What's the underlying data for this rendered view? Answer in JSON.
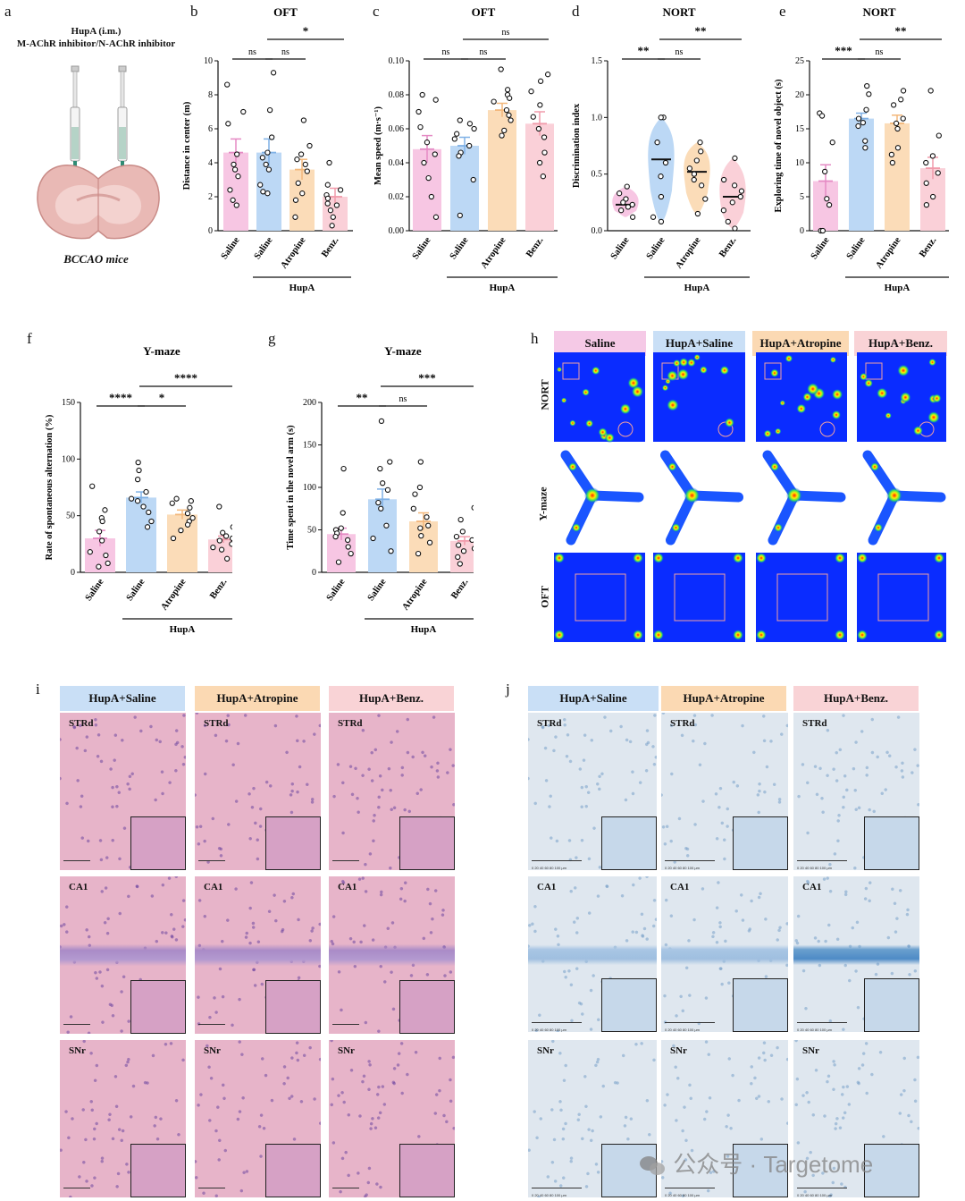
{
  "panel_letters": {
    "a": "a",
    "b": "b",
    "c": "c",
    "d": "d",
    "e": "e",
    "f": "f",
    "g": "g",
    "h": "h",
    "i": "i",
    "j": "j"
  },
  "panel_a": {
    "line1": "HupA (i.m.)",
    "line2": "M-AChR inhibitor/N-AChR inhibitor",
    "caption": "BCCAO mice"
  },
  "groups": [
    "Saline",
    "Saline",
    "Atropine",
    "Benz."
  ],
  "hupa_label": "HupA",
  "colors": {
    "pink": "#f7c6e3",
    "blue": "#bcd8f5",
    "orange": "#fbdcb8",
    "rose": "#fad0d8",
    "pink_edge": "#e58ac4",
    "blue_edge": "#7fb1e6",
    "orange_edge": "#f3b77a",
    "rose_edge": "#f19aaa"
  },
  "chart_data": [
    {
      "id": "b",
      "type": "bar",
      "title": "OFT",
      "ylabel": "Distance in center (m)",
      "categories": [
        "Saline",
        "Saline",
        "Atropine",
        "Benz."
      ],
      "values": [
        4.6,
        4.6,
        3.6,
        2.0
      ],
      "sem": [
        0.8,
        0.8,
        0.6,
        0.5
      ],
      "ylim": [
        0,
        10
      ],
      "yticks": [
        0,
        2,
        4,
        6,
        8,
        10
      ],
      "points": [
        [
          8.6,
          7.0,
          6.3,
          4.5,
          3.9,
          3.6,
          3.2,
          2.4,
          1.8,
          1.5
        ],
        [
          9.3,
          7.1,
          5.5,
          4.6,
          4.3,
          3.9,
          3.6,
          2.7,
          2.3,
          2.2
        ],
        [
          6.5,
          5.0,
          4.5,
          4.2,
          3.9,
          3.5,
          2.8,
          2.2,
          1.8,
          0.8
        ],
        [
          4.0,
          2.7,
          2.4,
          2.1,
          1.9,
          1.6,
          1.5,
          1.2,
          0.8,
          0.3
        ]
      ],
      "sig": [
        {
          "from": 0,
          "to": 1,
          "label": "ns",
          "level": 0
        },
        {
          "from": 1,
          "to": 2,
          "label": "ns",
          "level": 0
        },
        {
          "from": 1,
          "to": 3,
          "label": "*",
          "level": 1
        }
      ]
    },
    {
      "id": "c",
      "type": "bar",
      "title": "OFT",
      "ylabel": "Mean speed (m·s⁻¹)",
      "categories": [
        "Saline",
        "Saline",
        "Atropine",
        "Benz."
      ],
      "values": [
        0.048,
        0.05,
        0.071,
        0.063
      ],
      "sem": [
        0.008,
        0.005,
        0.004,
        0.007
      ],
      "ylim": [
        0,
        0.1
      ],
      "yticks": [
        0.0,
        0.02,
        0.04,
        0.06,
        0.08,
        0.1
      ],
      "points": [
        [
          0.08,
          0.077,
          0.07,
          0.061,
          0.052,
          0.045,
          0.04,
          0.031,
          0.02,
          0.008
        ],
        [
          0.065,
          0.063,
          0.06,
          0.057,
          0.054,
          0.05,
          0.046,
          0.044,
          0.03,
          0.009
        ],
        [
          0.095,
          0.083,
          0.08,
          0.078,
          0.076,
          0.071,
          0.068,
          0.065,
          0.059,
          0.056
        ],
        [
          0.092,
          0.088,
          0.082,
          0.074,
          0.067,
          0.06,
          0.055,
          0.046,
          0.04,
          0.032
        ]
      ],
      "sig": [
        {
          "from": 0,
          "to": 1,
          "label": "ns",
          "level": 0
        },
        {
          "from": 1,
          "to": 2,
          "label": "ns",
          "level": 0
        },
        {
          "from": 1,
          "to": 3,
          "label": "ns",
          "level": 1
        }
      ]
    },
    {
      "id": "d",
      "type": "violin",
      "title": "NORT",
      "ylabel": "Discrimination index",
      "categories": [
        "Saline",
        "Saline",
        "Atropine",
        "Benz."
      ],
      "values": [
        0.23,
        0.63,
        0.52,
        0.3
      ],
      "ylim": [
        0,
        1.5
      ],
      "yticks": [
        0.0,
        0.5,
        1.0,
        1.5
      ],
      "points": [
        [
          0.39,
          0.33,
          0.28,
          0.25,
          0.23,
          0.21,
          0.18,
          0.12
        ],
        [
          1.0,
          1.0,
          0.78,
          0.6,
          0.48,
          0.3,
          0.12,
          0.08
        ],
        [
          0.78,
          0.7,
          0.62,
          0.55,
          0.5,
          0.45,
          0.4,
          0.28,
          0.15
        ],
        [
          0.64,
          0.45,
          0.4,
          0.35,
          0.3,
          0.25,
          0.18,
          0.08,
          0.02
        ]
      ],
      "sig": [
        {
          "from": 0,
          "to": 1,
          "label": "**",
          "level": 0
        },
        {
          "from": 1,
          "to": 2,
          "label": "ns",
          "level": 0
        },
        {
          "from": 1,
          "to": 3,
          "label": "**",
          "level": 1
        }
      ]
    },
    {
      "id": "e",
      "type": "bar",
      "title": "NORT",
      "ylabel": "Exploring time of novel object (s)",
      "categories": [
        "Saline",
        "Saline",
        "Atropine",
        "Benz."
      ],
      "values": [
        7.3,
        16.5,
        15.8,
        9.2
      ],
      "sem": [
        2.4,
        0.8,
        1.2,
        1.6
      ],
      "ylim": [
        0,
        25
      ],
      "yticks": [
        0,
        5,
        10,
        15,
        20,
        25
      ],
      "points": [
        [
          17.3,
          16.9,
          13.0,
          8.7,
          4.7,
          3.8,
          0.0,
          0.0
        ],
        [
          21.3,
          20.1,
          17.8,
          16.5,
          15.9,
          15.4,
          13.2,
          12.2
        ],
        [
          20.6,
          19.3,
          18.5,
          16.5,
          15.8,
          15.0,
          12.2,
          11.2,
          10.0
        ],
        [
          20.6,
          14.0,
          11.0,
          10.0,
          8.5,
          7.0,
          5.0,
          3.8
        ]
      ],
      "sig": [
        {
          "from": 0,
          "to": 1,
          "label": "***",
          "level": 0
        },
        {
          "from": 1,
          "to": 2,
          "label": "ns",
          "level": 0
        },
        {
          "from": 1,
          "to": 3,
          "label": "**",
          "level": 1
        }
      ]
    },
    {
      "id": "f",
      "type": "bar",
      "title": "Y-maze",
      "ylabel": "Rate of spontaneous alternation (%)",
      "categories": [
        "Saline",
        "Saline",
        "Atropine",
        "Benz."
      ],
      "values": [
        30,
        66,
        51,
        29
      ],
      "sem": [
        7,
        5,
        4,
        3
      ],
      "ylim": [
        0,
        150
      ],
      "yticks": [
        0,
        50,
        100,
        150
      ],
      "points": [
        [
          76,
          55,
          48,
          45,
          36,
          28,
          18,
          15,
          8,
          5
        ],
        [
          97,
          90,
          82,
          71,
          65,
          63,
          58,
          53,
          45,
          40
        ],
        [
          65,
          63,
          61,
          57,
          52,
          48,
          45,
          42,
          37,
          30
        ],
        [
          58,
          40,
          35,
          32,
          30,
          28,
          25,
          22,
          20,
          12
        ]
      ],
      "sig": [
        {
          "from": 0,
          "to": 1,
          "label": "****",
          "level": 0
        },
        {
          "from": 1,
          "to": 2,
          "label": "*",
          "level": 0
        },
        {
          "from": 1,
          "to": 3,
          "label": "****",
          "level": 1
        }
      ]
    },
    {
      "id": "g",
      "type": "bar",
      "title": "Y-maze",
      "ylabel": "Time spent in the novel arm (s)",
      "categories": [
        "Saline",
        "Saline",
        "Atropine",
        "Benz."
      ],
      "values": [
        45,
        86,
        60,
        37
      ],
      "sem": [
        7,
        12,
        10,
        5
      ],
      "ylim": [
        0,
        200
      ],
      "yticks": [
        0,
        50,
        100,
        150,
        200
      ],
      "points": [
        [
          122,
          70,
          52,
          50,
          46,
          42,
          38,
          30,
          22,
          12
        ],
        [
          178,
          130,
          122,
          105,
          97,
          82,
          75,
          55,
          40,
          25
        ],
        [
          130,
          100,
          92,
          75,
          65,
          55,
          52,
          43,
          35,
          22
        ],
        [
          76,
          62,
          48,
          42,
          38,
          32,
          28,
          25,
          18,
          10
        ]
      ],
      "sig": [
        {
          "from": 0,
          "to": 1,
          "label": "**",
          "level": 0
        },
        {
          "from": 1,
          "to": 2,
          "label": "ns",
          "level": 0
        },
        {
          "from": 1,
          "to": 3,
          "label": "***",
          "level": 1
        }
      ]
    }
  ],
  "panel_h": {
    "headers": [
      "Saline",
      "HupA+Saline",
      "HupA+Atropine",
      "HupA+Benz."
    ],
    "rows": [
      "NORT",
      "Y-maze",
      "OFT"
    ]
  },
  "panel_i": {
    "headers": [
      "HupA+Saline",
      "HupA+Atropine",
      "HupA+Benz."
    ],
    "regions": [
      "STRd",
      "CA1",
      "SNr"
    ]
  },
  "panel_j": {
    "headers": [
      "HupA+Saline",
      "HupA+Atropine",
      "HupA+Benz."
    ],
    "regions": [
      "STRd",
      "CA1",
      "SNr"
    ],
    "scale_ticks": "0  20  40  60  80  100 μm"
  },
  "watermark": "公众号 · Targetome"
}
